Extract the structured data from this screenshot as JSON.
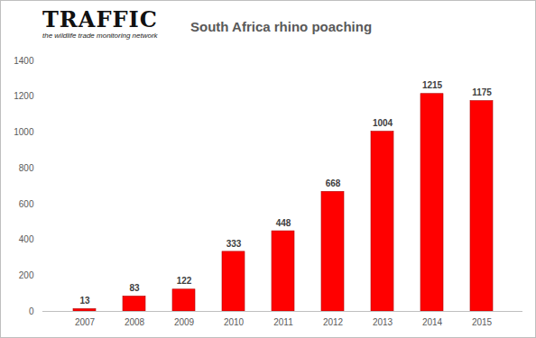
{
  "chart_data": {
    "type": "bar",
    "title": "South Africa rhino poaching",
    "annotations": [
      "TRAFFIC",
      "the wildlife trade monitoring network"
    ],
    "categories": [
      "2007",
      "2008",
      "2009",
      "2010",
      "2011",
      "2012",
      "2013",
      "2014",
      "2015"
    ],
    "values": [
      13,
      83,
      122,
      333,
      448,
      668,
      1004,
      1215,
      1175
    ],
    "color": "#ff0000",
    "ylim": [
      0,
      1400
    ],
    "yticks": [
      0,
      200,
      400,
      600,
      800,
      1000,
      1200,
      1400
    ],
    "grid": false,
    "data_labels": true
  }
}
